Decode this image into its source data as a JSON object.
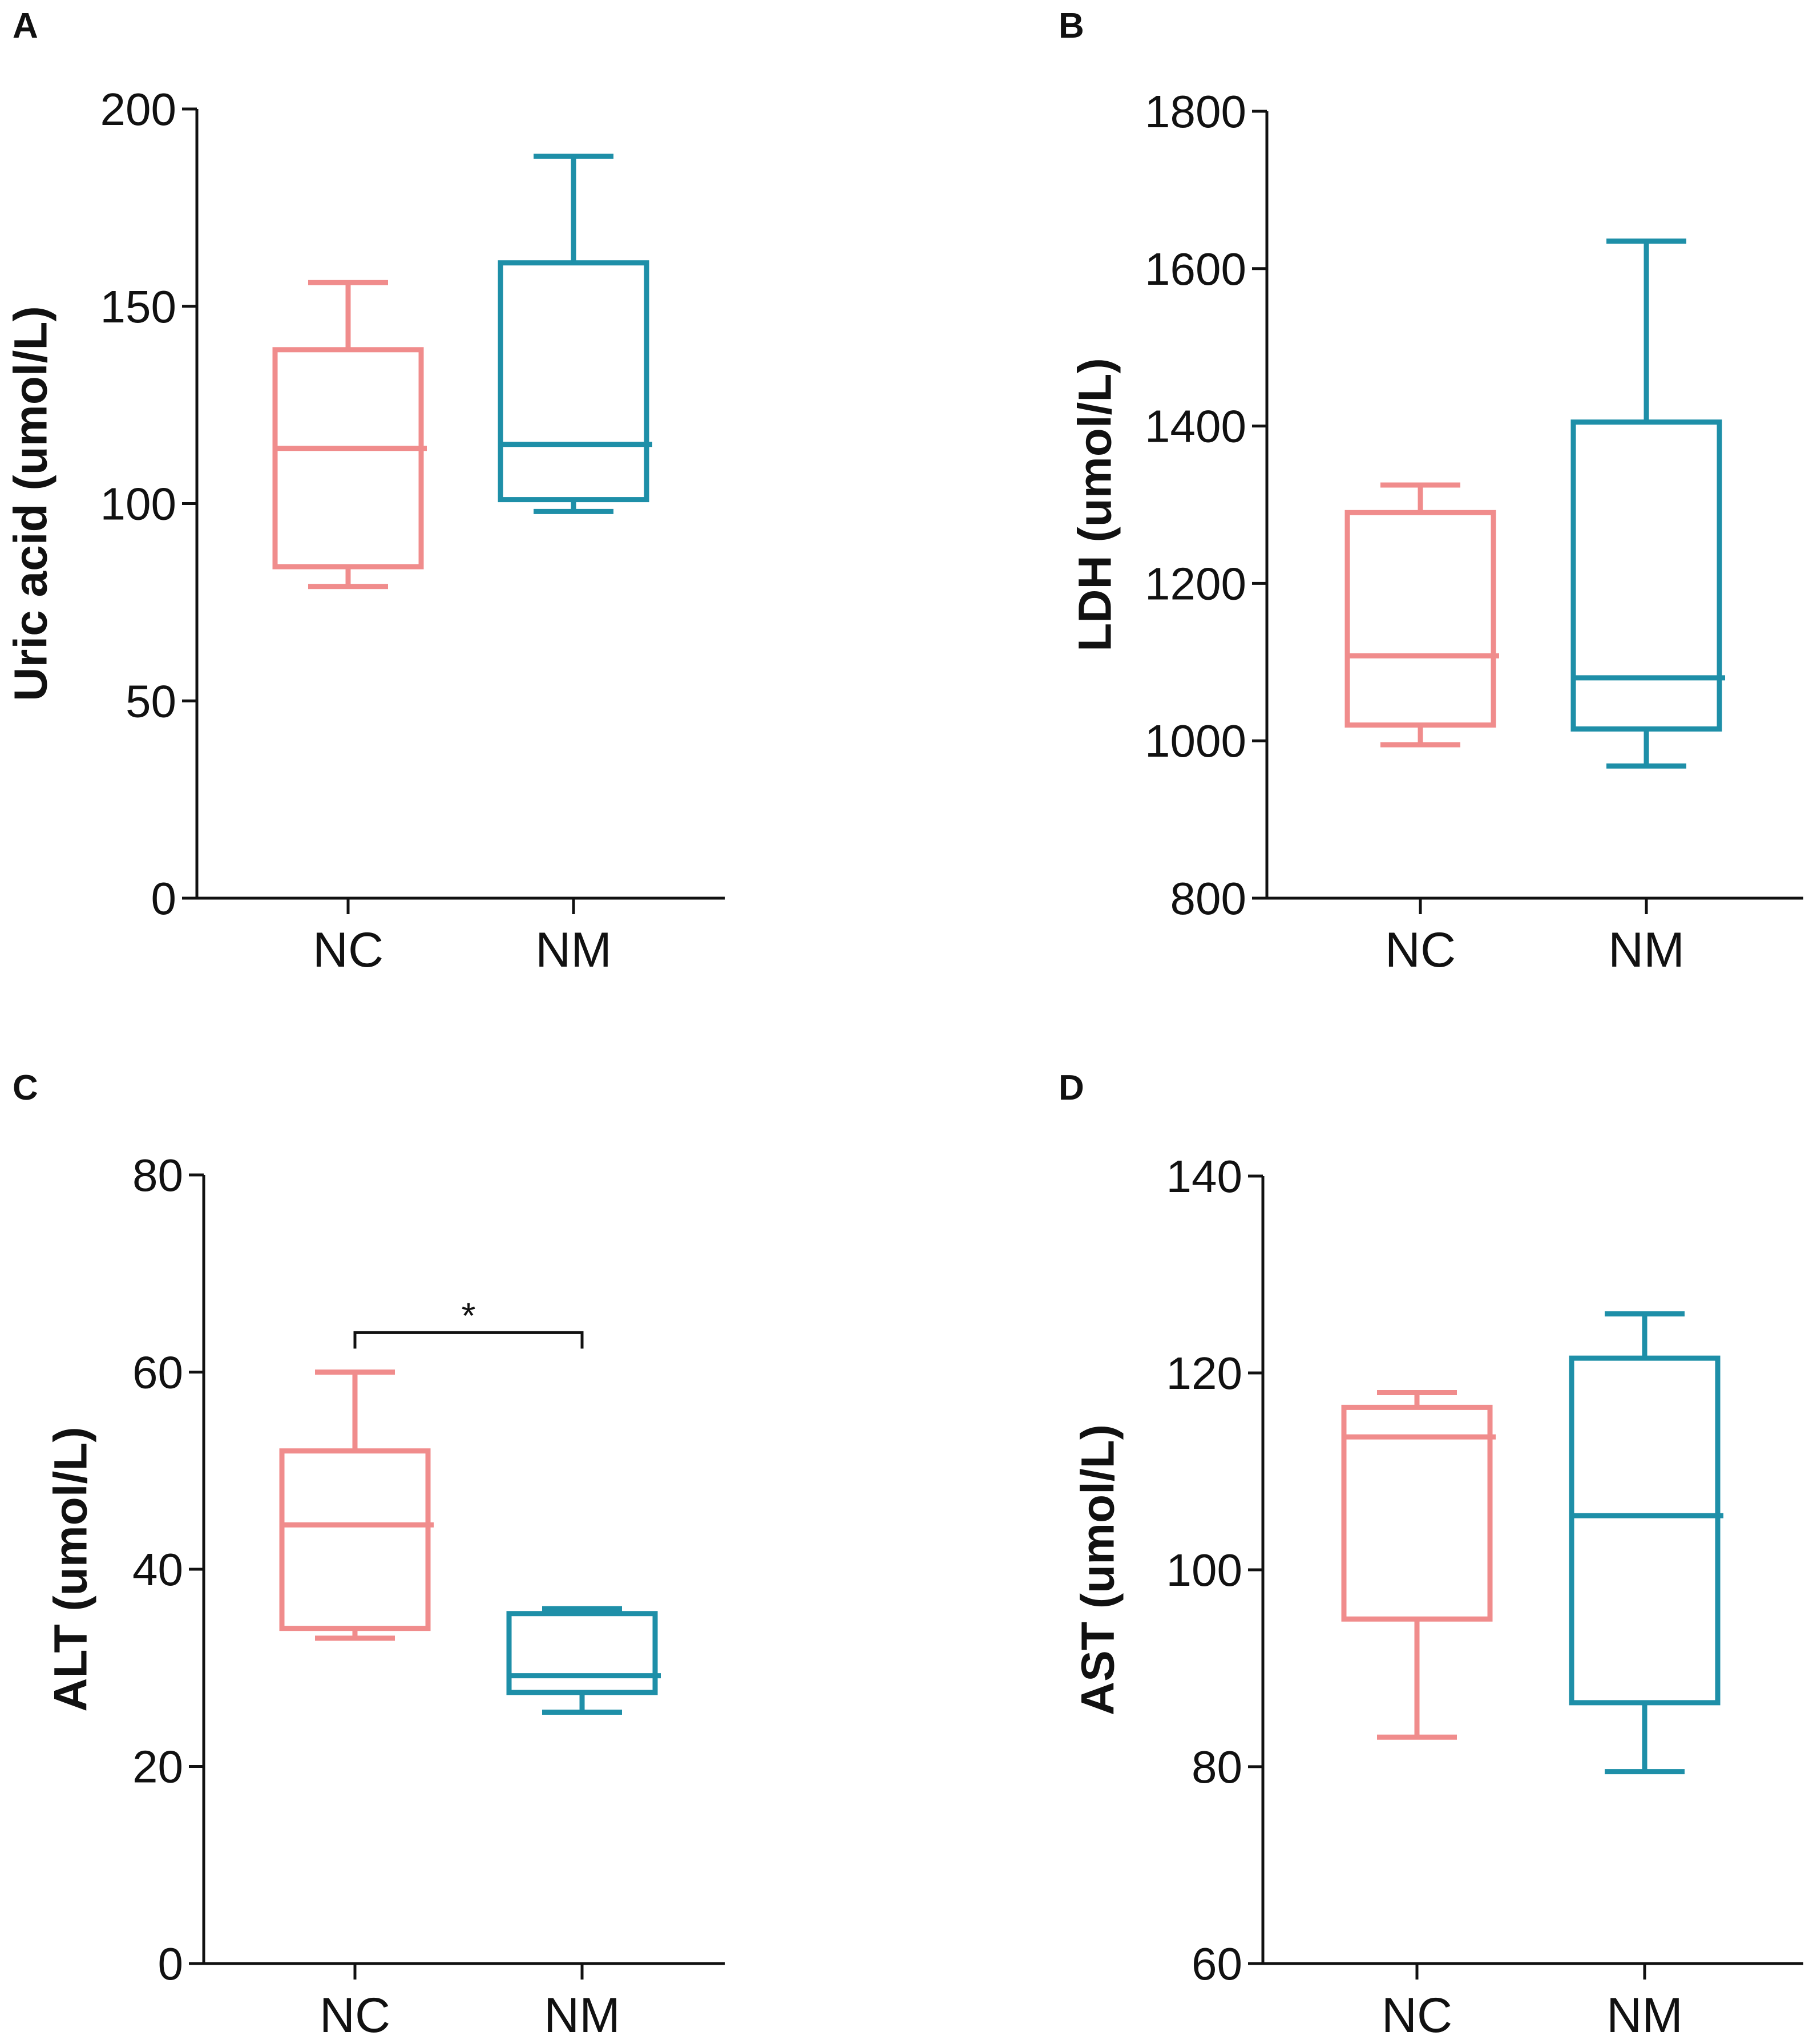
{
  "colors": {
    "NC": "#f08c8c",
    "NM": "#1e8fa8",
    "axis": "#111111"
  },
  "panel_letters": [
    "A",
    "B",
    "C",
    "D"
  ],
  "chart_data": [
    {
      "panel": "A",
      "type": "box",
      "ylabel": "Uric acid (umol/L)",
      "ylim": [
        0,
        200
      ],
      "yticks": [
        0,
        50,
        100,
        150,
        200
      ],
      "categories": [
        "NC",
        "NM"
      ],
      "boxes": [
        {
          "name": "NC",
          "min": 79,
          "q1": 84,
          "median": 114,
          "q3": 139,
          "max": 156
        },
        {
          "name": "NM",
          "min": 98,
          "q1": 101,
          "median": 115,
          "q3": 161,
          "max": 188
        }
      ]
    },
    {
      "panel": "B",
      "type": "box",
      "ylabel": "LDH (umol/L)",
      "ylim": [
        800,
        1800
      ],
      "yticks": [
        800,
        1000,
        1200,
        1400,
        1600,
        1800
      ],
      "categories": [
        "NC",
        "NM"
      ],
      "boxes": [
        {
          "name": "NC",
          "min": 995,
          "q1": 1020,
          "median": 1108,
          "q3": 1290,
          "max": 1325
        },
        {
          "name": "NM",
          "min": 968,
          "q1": 1015,
          "median": 1080,
          "q3": 1405,
          "max": 1635
        }
      ]
    },
    {
      "panel": "C",
      "type": "box",
      "ylabel": "ALT (umol/L)",
      "ylim": [
        0,
        80
      ],
      "yticks": [
        0,
        20,
        40,
        60,
        80
      ],
      "categories": [
        "NC",
        "NM"
      ],
      "boxes": [
        {
          "name": "NC",
          "min": 33,
          "q1": 34,
          "median": 44.5,
          "q3": 52,
          "max": 60
        },
        {
          "name": "NM",
          "min": 25.5,
          "q1": 27.5,
          "median": 29.2,
          "q3": 35.5,
          "max": 36
        }
      ],
      "significance": {
        "between": [
          "NC",
          "NM"
        ],
        "label": "*",
        "y": 64
      }
    },
    {
      "panel": "D",
      "type": "box",
      "ylabel": "AST (umol/L)",
      "ylim": [
        60,
        140
      ],
      "yticks": [
        60,
        80,
        100,
        120,
        140
      ],
      "categories": [
        "NC",
        "NM"
      ],
      "boxes": [
        {
          "name": "NC",
          "min": 83,
          "q1": 95,
          "median": 113.5,
          "q3": 116.5,
          "max": 118
        },
        {
          "name": "NM",
          "min": 79.5,
          "q1": 86.5,
          "median": 105.5,
          "q3": 121.5,
          "max": 126
        }
      ]
    }
  ]
}
